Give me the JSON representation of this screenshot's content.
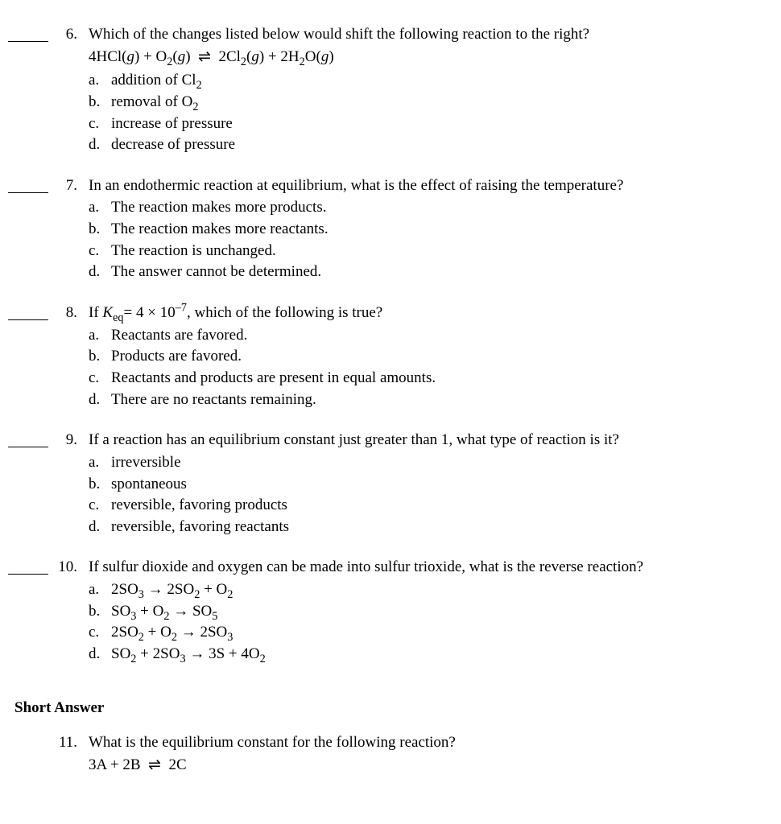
{
  "questions": [
    {
      "number": "6.",
      "stem_html": "Which of the changes listed below would shift the following reaction to the right?",
      "equation_html": "4HCl(<span class='italic'>g</span>) + O<sub>2</sub>(<span class='italic'>g</span>) &nbsp;⇌&nbsp; 2Cl<sub>2</sub>(<span class='italic'>g</span>) + 2H<sub>2</sub>O(<span class='italic'>g</span>)",
      "options": [
        {
          "letter": "a.",
          "text_html": "addition of Cl<sub>2</sub>"
        },
        {
          "letter": "b.",
          "text_html": "removal of O<sub>2</sub>"
        },
        {
          "letter": "c.",
          "text_html": "increase of pressure"
        },
        {
          "letter": "d.",
          "text_html": "decrease of pressure"
        }
      ]
    },
    {
      "number": "7.",
      "stem_html": "In an endothermic reaction at equilibrium, what is the effect of raising the temperature?",
      "equation_html": "",
      "options": [
        {
          "letter": "a.",
          "text_html": "The reaction makes more products."
        },
        {
          "letter": "b.",
          "text_html": "The reaction makes more reactants."
        },
        {
          "letter": "c.",
          "text_html": "The reaction is unchanged."
        },
        {
          "letter": "d.",
          "text_html": "The answer cannot be determined."
        }
      ]
    },
    {
      "number": "8.",
      "stem_html": "If <span class='italic'>K</span><sub>eq</sub>= 4 × 10<sup>–7</sup>, which of the following is true?",
      "equation_html": "",
      "options": [
        {
          "letter": "a.",
          "text_html": "Reactants are favored."
        },
        {
          "letter": "b.",
          "text_html": "Products are favored."
        },
        {
          "letter": "c.",
          "text_html": "Reactants and products are present in equal amounts."
        },
        {
          "letter": "d.",
          "text_html": "There are no reactants remaining."
        }
      ]
    },
    {
      "number": "9.",
      "stem_html": "If a reaction has an equilibrium constant just greater than 1, what type of reaction is it?",
      "equation_html": "",
      "options": [
        {
          "letter": "a.",
          "text_html": "irreversible"
        },
        {
          "letter": "b.",
          "text_html": "spontaneous"
        },
        {
          "letter": "c.",
          "text_html": "reversible, favoring products"
        },
        {
          "letter": "d.",
          "text_html": "reversible, favoring reactants"
        }
      ]
    },
    {
      "number": "10.",
      "stem_html": "If sulfur dioxide and oxygen can be made into sulfur trioxide, what is the reverse reaction?",
      "equation_html": "",
      "options": [
        {
          "letter": "a.",
          "text_html": "2SO<sub>3</sub>  →  2SO<sub>2</sub>  + O<sub>2</sub>"
        },
        {
          "letter": "b.",
          "text_html": "SO<sub>3</sub>  + O<sub>2</sub>  →  SO<sub>5</sub>"
        },
        {
          "letter": "c.",
          "text_html": "2SO<sub>2</sub>  + O<sub>2</sub>  →  2SO<sub>3</sub>"
        },
        {
          "letter": "d.",
          "text_html": "SO<sub>2</sub>  + 2SO<sub>3</sub>  →  3S + 4O<sub>2</sub>"
        }
      ]
    }
  ],
  "section_heading": "Short Answer",
  "short_answer": {
    "number": "11.",
    "stem_html": "What is the equilibrium constant for the following reaction?",
    "equation_html": "3A + 2B &nbsp;⇌&nbsp; 2C"
  },
  "colors": {
    "text": "#000000",
    "background": "#ffffff"
  },
  "typography": {
    "font_family": "Times New Roman",
    "font_size_pt": 14
  }
}
